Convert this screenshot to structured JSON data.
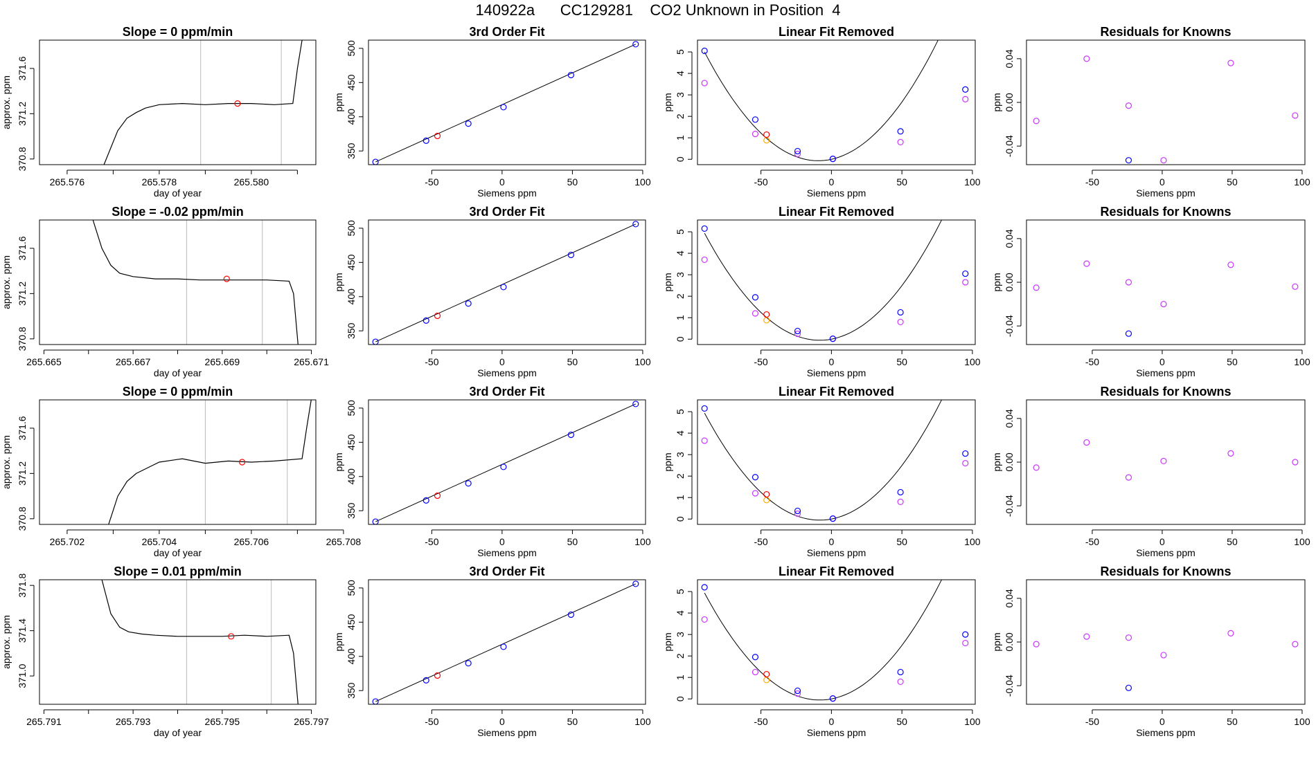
{
  "page": {
    "title": "140922a      CC129281    CO2 Unknown in Position  4"
  },
  "chart_data": [
    {
      "type": "line",
      "title": "Slope =  0  ppm/min",
      "xlabel": "day of year",
      "ylabel": "approx. ppm",
      "xlim": [
        265.5754,
        265.5814
      ],
      "ylim": [
        370.75,
        371.85
      ],
      "xticks": [
        265.576,
        265.577,
        265.578,
        265.579,
        265.58,
        265.581
      ],
      "xticklabels": [
        "265.576",
        "",
        "265.578",
        "",
        "265.580",
        ""
      ],
      "yticks": [
        370.8,
        371.2,
        371.6
      ],
      "yticklabels": [
        "370.8",
        "371.2",
        "371.6"
      ],
      "vlines": [
        265.5789,
        265.58065
      ],
      "series": [
        {
          "x": [
            265.5768,
            265.5771,
            265.5773,
            265.5775,
            265.5777,
            265.578,
            265.5785,
            265.579,
            265.5795,
            265.58,
            265.5805,
            265.5809,
            265.581,
            265.5811
          ],
          "values": [
            370.75,
            371.05,
            371.16,
            371.21,
            371.25,
            371.28,
            371.29,
            371.28,
            371.29,
            371.29,
            371.28,
            371.29,
            371.6,
            371.85
          ]
        }
      ],
      "marker": {
        "x": 265.5797,
        "y": 371.29
      }
    },
    {
      "type": "scatter",
      "title": "3rd Order Fit",
      "xlabel": "Siemens ppm",
      "ylabel": "ppm",
      "xlim": [
        -95,
        102
      ],
      "ylim": [
        330,
        512
      ],
      "xticks": [
        -50,
        0,
        50,
        100
      ],
      "xticklabels": [
        "-50",
        "0",
        "50",
        "100"
      ],
      "yticks": [
        350,
        400,
        450,
        500
      ],
      "yticklabels": [
        "350",
        "400",
        "450",
        "500"
      ],
      "line": [
        [
          -90,
          334
        ],
        [
          95,
          506
        ]
      ],
      "knowns": {
        "x": [
          -90,
          -54,
          -24,
          1,
          49,
          95
        ],
        "y": [
          334,
          365,
          390,
          414,
          461,
          506
        ]
      },
      "unknown": {
        "x": [
          -46
        ],
        "y": [
          372
        ]
      }
    },
    {
      "type": "scatter",
      "title": "Linear Fit Removed",
      "xlabel": "Siemens ppm",
      "ylabel": "ppm",
      "xlim": [
        -95,
        102
      ],
      "ylim": [
        -0.25,
        5.55
      ],
      "xticks": [
        -50,
        0,
        50,
        100
      ],
      "xticklabels": [
        "-50",
        "0",
        "50",
        "100"
      ],
      "yticks": [
        0,
        1,
        2,
        3,
        4,
        5
      ],
      "yticklabels": [
        "0",
        "1",
        "2",
        "3",
        "4",
        "5"
      ],
      "curve_coeffs": [
        0.0007778,
        0.0145,
        0.0
      ],
      "knowns": {
        "x": [
          -90,
          -54,
          -24,
          1,
          49,
          95
        ],
        "y": [
          5.05,
          1.85,
          0.38,
          0.02,
          1.3,
          3.25
        ]
      },
      "magenta": {
        "x": [
          -90,
          -54,
          -24,
          1,
          49,
          95
        ],
        "y": [
          3.55,
          1.18,
          0.25,
          0.02,
          0.8,
          2.8
        ]
      },
      "unknown": {
        "x": [
          -46
        ],
        "y": [
          1.15
        ]
      },
      "orange": {
        "x": [
          -46
        ],
        "y": [
          0.88
        ]
      }
    },
    {
      "type": "scatter",
      "title": "Residuals for Knowns",
      "xlabel": "Siemens ppm",
      "ylabel": "ppm",
      "xlim": [
        -97,
        102
      ],
      "ylim": [
        -0.057,
        0.057
      ],
      "xticks": [
        -50,
        0,
        50,
        100
      ],
      "xticklabels": [
        "-50",
        "0",
        "50",
        "100"
      ],
      "yticks": [
        -0.04,
        0.0,
        0.04
      ],
      "yticklabels": [
        "-0.04",
        "0.00",
        "0.04"
      ],
      "magenta": {
        "x": [
          -90,
          -54,
          -24,
          1,
          49,
          95
        ],
        "y": [
          -0.017,
          0.04,
          -0.003,
          -0.053,
          0.036,
          -0.012
        ]
      },
      "knowns": {
        "x": [
          -24
        ],
        "y": [
          -0.053
        ]
      }
    },
    {
      "type": "line",
      "title": "Slope =  -0.02  ppm/min",
      "xlabel": "day of year",
      "ylabel": "approx. ppm",
      "xlim": [
        265.6649,
        265.6711
      ],
      "ylim": [
        370.75,
        371.85
      ],
      "xticks": [
        265.665,
        265.666,
        265.667,
        265.668,
        265.669,
        265.67,
        265.671
      ],
      "xticklabels": [
        "265.665",
        "",
        "265.667",
        "",
        "265.669",
        "",
        "265.671"
      ],
      "yticks": [
        370.8,
        371.2,
        371.6
      ],
      "yticklabels": [
        "370.8",
        "371.2",
        "371.6"
      ],
      "vlines": [
        265.6682,
        265.6699
      ],
      "series": [
        {
          "x": [
            265.6661,
            265.6663,
            265.6665,
            265.6667,
            265.667,
            265.6675,
            265.668,
            265.6685,
            265.669,
            265.6695,
            265.67,
            265.6705,
            265.6706,
            265.6707
          ],
          "values": [
            371.85,
            371.6,
            371.45,
            371.38,
            371.35,
            371.33,
            371.33,
            371.32,
            371.32,
            371.32,
            371.32,
            371.31,
            371.2,
            370.75
          ]
        }
      ],
      "marker": {
        "x": 265.6691,
        "y": 371.33
      }
    },
    {
      "type": "scatter",
      "title": "3rd Order Fit",
      "xlabel": "Siemens ppm",
      "ylabel": "ppm",
      "xlim": [
        -95,
        102
      ],
      "ylim": [
        330,
        512
      ],
      "xticks": [
        -50,
        0,
        50,
        100
      ],
      "xticklabels": [
        "-50",
        "0",
        "50",
        "100"
      ],
      "yticks": [
        350,
        400,
        450,
        500
      ],
      "yticklabels": [
        "350",
        "400",
        "450",
        "500"
      ],
      "line": [
        [
          -90,
          334
        ],
        [
          95,
          506
        ]
      ],
      "knowns": {
        "x": [
          -90,
          -54,
          -24,
          1,
          49,
          95
        ],
        "y": [
          334,
          365,
          390,
          414,
          461,
          506
        ]
      },
      "unknown": {
        "x": [
          -46
        ],
        "y": [
          372
        ]
      }
    },
    {
      "type": "scatter",
      "title": "Linear Fit Removed",
      "xlabel": "Siemens ppm",
      "ylabel": "ppm",
      "xlim": [
        -95,
        102
      ],
      "ylim": [
        -0.25,
        5.55
      ],
      "xticks": [
        -50,
        0,
        50,
        100
      ],
      "xticklabels": [
        "-50",
        "0",
        "50",
        "100"
      ],
      "yticks": [
        0,
        1,
        2,
        3,
        4,
        5
      ],
      "yticklabels": [
        "0",
        "1",
        "2",
        "3",
        "4",
        "5"
      ],
      "curve_coeffs": [
        0.000748,
        0.0125,
        0.0
      ],
      "knowns": {
        "x": [
          -90,
          -54,
          -24,
          1,
          49,
          95
        ],
        "y": [
          5.15,
          1.95,
          0.38,
          0.02,
          1.25,
          3.05
        ]
      },
      "magenta": {
        "x": [
          -90,
          -54,
          -24,
          1,
          49,
          95
        ],
        "y": [
          3.7,
          1.2,
          0.25,
          0.02,
          0.8,
          2.65
        ]
      },
      "unknown": {
        "x": [
          -46
        ],
        "y": [
          1.15
        ]
      },
      "orange": {
        "x": [
          -46
        ],
        "y": [
          0.88
        ]
      }
    },
    {
      "type": "scatter",
      "title": "Residuals for Knowns",
      "xlabel": "Siemens ppm",
      "ylabel": "ppm",
      "xlim": [
        -97,
        102
      ],
      "ylim": [
        -0.057,
        0.057
      ],
      "xticks": [
        -50,
        0,
        50,
        100
      ],
      "xticklabels": [
        "-50",
        "0",
        "50",
        "100"
      ],
      "yticks": [
        -0.04,
        0.0,
        0.04
      ],
      "yticklabels": [
        "-0.04",
        "0.00",
        "0.04"
      ],
      "magenta": {
        "x": [
          -90,
          -54,
          -24,
          1,
          49,
          95
        ],
        "y": [
          -0.005,
          0.017,
          0.0,
          -0.02,
          0.016,
          -0.004
        ]
      },
      "knowns": {
        "x": [
          -24
        ],
        "y": [
          -0.047
        ]
      }
    },
    {
      "type": "line",
      "title": "Slope =  0  ppm/min",
      "xlabel": "day of year",
      "ylabel": "approx. ppm",
      "xlim": [
        265.7014,
        265.7074
      ],
      "ylim": [
        370.75,
        371.85
      ],
      "xticks": [
        265.702,
        265.703,
        265.704,
        265.705,
        265.706,
        265.707,
        265.708
      ],
      "xticklabels": [
        "265.702",
        "",
        "265.704",
        "",
        "265.706",
        "",
        "265.708"
      ],
      "yticks": [
        370.8,
        371.2,
        371.6
      ],
      "yticklabels": [
        "370.8",
        "371.2",
        "371.6"
      ],
      "vlines": [
        265.705,
        265.70678
      ],
      "series": [
        {
          "x": [
            265.7029,
            265.7031,
            265.7033,
            265.7035,
            265.7038,
            265.704,
            265.7045,
            265.705,
            265.7055,
            265.706,
            265.7065,
            265.7071,
            265.7072,
            265.7073
          ],
          "values": [
            370.75,
            371.0,
            371.13,
            371.2,
            371.26,
            371.3,
            371.33,
            371.29,
            371.31,
            371.3,
            371.31,
            371.33,
            371.6,
            371.85
          ]
        }
      ],
      "marker": {
        "x": 265.7058,
        "y": 371.3
      }
    },
    {
      "type": "scatter",
      "title": "3rd Order Fit",
      "xlabel": "Siemens ppm",
      "ylabel": "ppm",
      "xlim": [
        -95,
        102
      ],
      "ylim": [
        330,
        512
      ],
      "xticks": [
        -50,
        0,
        50,
        100
      ],
      "xticklabels": [
        "-50",
        "0",
        "50",
        "100"
      ],
      "yticks": [
        350,
        400,
        450,
        500
      ],
      "yticklabels": [
        "350",
        "400",
        "450",
        "500"
      ],
      "line": [
        [
          -90,
          334
        ],
        [
          95,
          506
        ]
      ],
      "knowns": {
        "x": [
          -90,
          -54,
          -24,
          1,
          49,
          95
        ],
        "y": [
          334,
          365,
          390,
          414,
          461,
          506
        ]
      },
      "unknown": {
        "x": [
          -46
        ],
        "y": [
          372
        ]
      }
    },
    {
      "type": "scatter",
      "title": "Linear Fit Removed",
      "xlabel": "Siemens ppm",
      "ylabel": "ppm",
      "xlim": [
        -95,
        102
      ],
      "ylim": [
        -0.25,
        5.55
      ],
      "xticks": [
        -50,
        0,
        50,
        100
      ],
      "xticklabels": [
        "-50",
        "0",
        "50",
        "100"
      ],
      "yticks": [
        0,
        1,
        2,
        3,
        4,
        5
      ],
      "yticklabels": [
        "0",
        "1",
        "2",
        "3",
        "4",
        "5"
      ],
      "curve_coeffs": [
        0.000748,
        0.0125,
        0.0
      ],
      "knowns": {
        "x": [
          -90,
          -54,
          -24,
          1,
          49,
          95
        ],
        "y": [
          5.15,
          1.95,
          0.38,
          0.02,
          1.25,
          3.05
        ]
      },
      "magenta": {
        "x": [
          -90,
          -54,
          -24,
          1,
          49,
          95
        ],
        "y": [
          3.65,
          1.2,
          0.25,
          0.02,
          0.8,
          2.6
        ]
      },
      "unknown": {
        "x": [
          -46
        ],
        "y": [
          1.15
        ]
      },
      "orange": {
        "x": [
          -46
        ],
        "y": [
          0.88
        ]
      }
    },
    {
      "type": "scatter",
      "title": "Residuals for Knowns",
      "xlabel": "Siemens ppm",
      "ylabel": "ppm",
      "xlim": [
        -97,
        102
      ],
      "ylim": [
        -0.057,
        0.057
      ],
      "xticks": [
        -50,
        0,
        50,
        100
      ],
      "xticklabels": [
        "-50",
        "0",
        "50",
        "100"
      ],
      "yticks": [
        -0.04,
        0.0,
        0.04
      ],
      "yticklabels": [
        "-0.04",
        "0.00",
        "0.04"
      ],
      "magenta": {
        "x": [
          -90,
          -54,
          -24,
          1,
          49,
          95
        ],
        "y": [
          -0.005,
          0.018,
          -0.014,
          0.001,
          0.008,
          0.0
        ]
      },
      "knowns": {
        "x": [],
        "y": []
      }
    },
    {
      "type": "line",
      "title": "Slope =  0.01  ppm/min",
      "xlabel": "day of year",
      "ylabel": "approx. ppm",
      "xlim": [
        265.7909,
        265.7971
      ],
      "ylim": [
        370.75,
        371.85
      ],
      "xticks": [
        265.791,
        265.792,
        265.793,
        265.794,
        265.795,
        265.796,
        265.797
      ],
      "xticklabels": [
        "265.791",
        "",
        "265.793",
        "",
        "265.795",
        "",
        "265.797"
      ],
      "yticks": [
        371.0,
        371.4,
        371.8
      ],
      "yticklabels": [
        "371.0",
        "371.4",
        "371.8"
      ],
      "vlines": [
        265.7942,
        265.7961
      ],
      "series": [
        {
          "x": [
            265.7923,
            265.7925,
            265.7927,
            265.7929,
            265.7932,
            265.7935,
            265.794,
            265.7945,
            265.795,
            265.7955,
            265.796,
            265.7965,
            265.7966,
            265.7967
          ],
          "values": [
            371.85,
            371.55,
            371.43,
            371.39,
            371.37,
            371.36,
            371.35,
            371.35,
            371.35,
            371.36,
            371.35,
            371.36,
            371.2,
            370.75
          ]
        }
      ],
      "marker": {
        "x": 265.7952,
        "y": 371.35
      }
    },
    {
      "type": "scatter",
      "title": "3rd Order Fit",
      "xlabel": "Siemens ppm",
      "ylabel": "ppm",
      "xlim": [
        -95,
        102
      ],
      "ylim": [
        330,
        512
      ],
      "xticks": [
        -50,
        0,
        50,
        100
      ],
      "xticklabels": [
        "-50",
        "0",
        "50",
        "100"
      ],
      "yticks": [
        350,
        400,
        450,
        500
      ],
      "yticklabels": [
        "350",
        "400",
        "450",
        "500"
      ],
      "line": [
        [
          -90,
          334
        ],
        [
          95,
          506
        ]
      ],
      "knowns": {
        "x": [
          -90,
          -54,
          -24,
          1,
          49,
          95
        ],
        "y": [
          334,
          365,
          390,
          414,
          461,
          506
        ]
      },
      "unknown": {
        "x": [
          -46
        ],
        "y": [
          372
        ]
      }
    },
    {
      "type": "scatter",
      "title": "Linear Fit Removed",
      "xlabel": "Siemens ppm",
      "ylabel": "ppm",
      "xlim": [
        -95,
        102
      ],
      "ylim": [
        -0.25,
        5.55
      ],
      "xticks": [
        -50,
        0,
        50,
        100
      ],
      "xticklabels": [
        "-50",
        "0",
        "50",
        "100"
      ],
      "yticks": [
        0,
        1,
        2,
        3,
        4,
        5
      ],
      "yticklabels": [
        "0",
        "1",
        "2",
        "3",
        "4",
        "5"
      ],
      "curve_coeffs": [
        0.000748,
        0.0125,
        0.0
      ],
      "knowns": {
        "x": [
          -90,
          -54,
          -24,
          1,
          49,
          95
        ],
        "y": [
          5.2,
          1.95,
          0.38,
          0.02,
          1.25,
          3.0
        ]
      },
      "magenta": {
        "x": [
          -90,
          -54,
          -24,
          1,
          49,
          95
        ],
        "y": [
          3.7,
          1.25,
          0.25,
          0.02,
          0.8,
          2.6
        ]
      },
      "unknown": {
        "x": [
          -46
        ],
        "y": [
          1.15
        ]
      },
      "orange": {
        "x": [
          -46
        ],
        "y": [
          0.88
        ]
      }
    },
    {
      "type": "scatter",
      "title": "Residuals for Knowns",
      "xlabel": "Siemens ppm",
      "ylabel": "ppm",
      "xlim": [
        -97,
        102
      ],
      "ylim": [
        -0.057,
        0.057
      ],
      "xticks": [
        -50,
        0,
        50,
        100
      ],
      "xticklabels": [
        "-50",
        "0",
        "50",
        "100"
      ],
      "yticks": [
        -0.04,
        0.0,
        0.04
      ],
      "yticklabels": [
        "-0.04",
        "0.00",
        "0.04"
      ],
      "magenta": {
        "x": [
          -90,
          -54,
          -24,
          1,
          49,
          95
        ],
        "y": [
          -0.002,
          0.005,
          0.004,
          -0.012,
          0.008,
          -0.002
        ]
      },
      "knowns": {
        "x": [
          -24
        ],
        "y": [
          -0.042
        ]
      }
    }
  ],
  "colors": {
    "known": "#0000ff",
    "unknown": "#ff0000",
    "magenta": "#cc33ff",
    "orange": "#ffa500",
    "vline": "#bbbbbb",
    "axis": "#000000"
  }
}
